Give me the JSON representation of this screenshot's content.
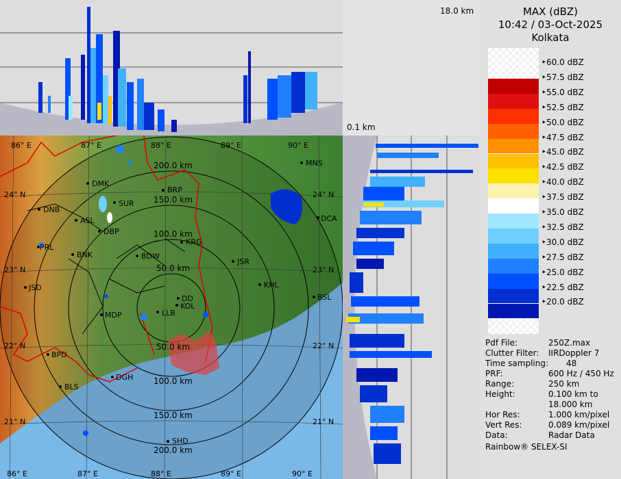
{
  "header": {
    "product": "MAX (dBZ)",
    "datetime": "10:42 / 03-Oct-2025",
    "station": "Kolkata"
  },
  "vertical_labels": {
    "max_height": "18.0 km",
    "min_height": "0.1 km"
  },
  "scale": {
    "values": [
      "60.0 dBZ",
      "57.5 dBZ",
      "55.0 dBZ",
      "52.5 dBZ",
      "50.0 dBZ",
      "47.5 dBZ",
      "45.0 dBZ",
      "42.5 dBZ",
      "40.0 dBZ",
      "37.5 dBZ",
      "35.0 dBZ",
      "32.5 dBZ",
      "30.0 dBZ",
      "27.5 dBZ",
      "25.0 dBZ",
      "22.5 dBZ",
      "20.0 dBZ"
    ],
    "colors": [
      "#a00000",
      "#c00000",
      "#e01010",
      "#ff3000",
      "#ff6000",
      "#ff9000",
      "#ffc000",
      "#ffe000",
      "#fff2b0",
      "#ffffff",
      "#a0e8ff",
      "#70d0ff",
      "#40b0ff",
      "#2080ff",
      "#0050ff",
      "#0030d0",
      "#0018b0"
    ]
  },
  "info": {
    "rows": [
      {
        "k": "Pdf File:",
        "v": "250Z.max"
      },
      {
        "k": "Clutter Filter:",
        "v": "IIRDoppler 7"
      },
      {
        "k": "Time sampling:",
        "v": "48"
      },
      {
        "k": "PRF:",
        "v": "600 Hz / 450 Hz"
      },
      {
        "k": "Range:",
        "v": "250 km"
      },
      {
        "k": "Height:",
        "v": "0.100 km to"
      },
      {
        "k": "",
        "v": "18.000 km"
      },
      {
        "k": "Hor Res:",
        "v": "1.000 km/pixel"
      },
      {
        "k": "Vert Res:",
        "v": "0.089 km/pixel"
      },
      {
        "k": "Data:",
        "v": "Radar Data"
      }
    ],
    "credit": "Rainbow® SELEX-SI"
  },
  "map": {
    "lon_labels": [
      "86° E",
      "87° E",
      "88° E",
      "89° E",
      "90° E"
    ],
    "lon_labels_bottom": [
      "86° E",
      "87° E",
      "88° E",
      "89° E",
      "90° E"
    ],
    "lat_labels": [
      "24° N",
      "23° N",
      "22° N",
      "21° N"
    ],
    "lat_labels_right": [
      "24° N",
      "23° N",
      "22° N",
      "21° N"
    ],
    "range_labels": [
      "50.0 km",
      "100.0 km",
      "150.0 km",
      "200.0 km"
    ],
    "range_labels_south": [
      "50.0 km",
      "100.0 km",
      "150.0 km",
      "200.0 km"
    ],
    "cities": [
      "MNS",
      "DMK",
      "BRP",
      "SUR",
      "DNB",
      "ASL",
      "DBP",
      "DCA",
      "KRG",
      "PRL",
      "BNK",
      "BDW",
      "JSR",
      "KHL",
      "JSD",
      "DD",
      "KOL",
      "LLB",
      "MDP",
      "BSL",
      "BPD",
      "DGH",
      "BLS",
      "SHD"
    ]
  }
}
